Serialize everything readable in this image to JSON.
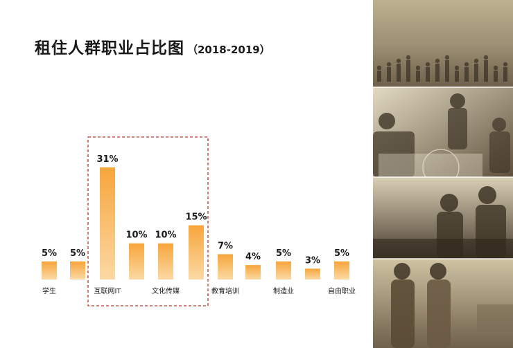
{
  "title": {
    "main": "租住人群职业占比图",
    "paren": "（2018-2019）"
  },
  "colors": {
    "bar_top": "#F7A53B",
    "bar_bottom": "#FBD9A4",
    "highlight_border": "#C0392B",
    "text": "#1a1a1a",
    "photo_tone": "#8A7B5C"
  },
  "photo_panels": [
    {
      "name": "street-crowd-photo"
    },
    {
      "name": "cafe-people-photo"
    },
    {
      "name": "office-workers-photo"
    },
    {
      "name": "walking-couple-photo"
    }
  ],
  "chart_data": {
    "type": "bar",
    "categories": [
      "学生",
      "",
      "互联网IT",
      "",
      "文化传媒",
      "",
      "教育培训",
      "",
      "制造业",
      "",
      "自由职业"
    ],
    "values": [
      5,
      5,
      31,
      10,
      10,
      15,
      7,
      4,
      5,
      3,
      5
    ],
    "value_labels": [
      "5%",
      "5%",
      "31%",
      "10%",
      "10%",
      "15%",
      "7%",
      "4%",
      "5%",
      "3%",
      "5%"
    ],
    "title": "租住人群职业占比图",
    "xlabel": "",
    "ylabel": "",
    "ylim": [
      0,
      35
    ],
    "grid": false,
    "legend": "none",
    "highlight": {
      "from_index": 2,
      "to_index": 5,
      "style": "dashed-box"
    }
  }
}
